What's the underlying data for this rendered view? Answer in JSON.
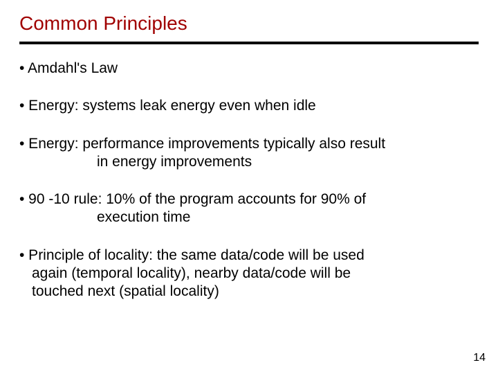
{
  "title_color": "#a00000",
  "title": "Common Principles",
  "bullets": {
    "b1": "• Amdahl's Law",
    "b2": "• Energy: systems leak energy even when idle",
    "b3_line1": "• Energy: performance improvements typically also result",
    "b3_cont": "in energy improvements",
    "b4_line1": "• 90 -10 rule: 10% of the program accounts for 90% of",
    "b4_cont": "execution time",
    "b5_line1": "• Principle of locality: the same data/code will be used",
    "b5_line2": "again (temporal locality), nearby data/code will be",
    "b5_line3": "touched next (spatial locality)"
  },
  "page_number": "14"
}
